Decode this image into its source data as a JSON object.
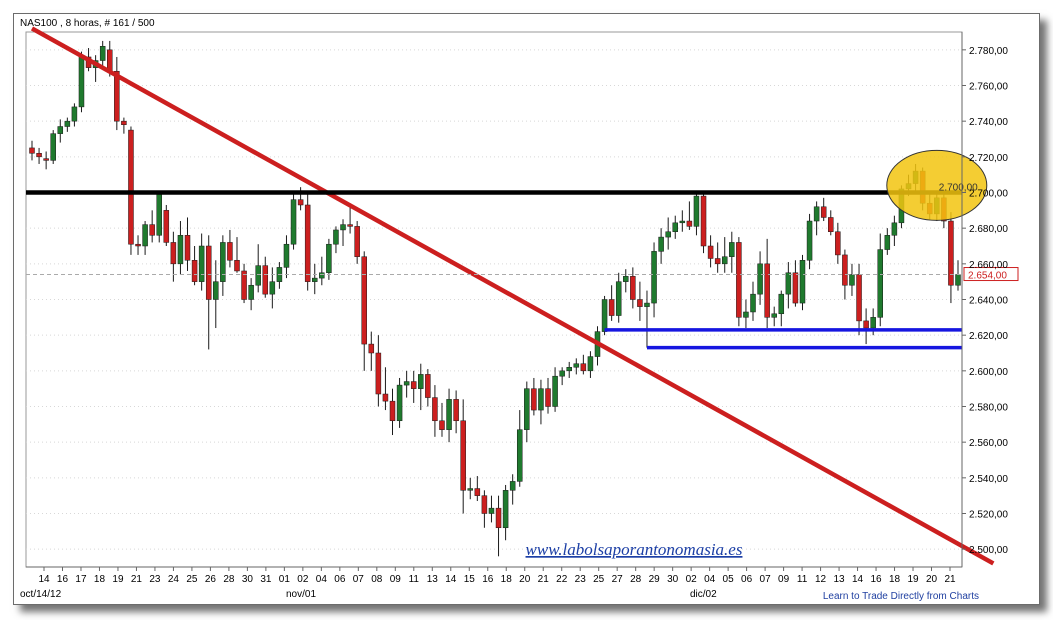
{
  "header": {
    "title": "NAS100 , 8 horas, # 161 / 500"
  },
  "footer": {
    "link": "Learn to Trade Directly from Charts"
  },
  "watermark": "www.labolsaporantonomasia.es",
  "price_label": "2.654,00",
  "circle_label": "2.700,00",
  "colors": {
    "up": "#1f7a2e",
    "down": "#cc1f1f",
    "trendline": "#cc1f1f",
    "resistance": "#000000",
    "support": "#1616e0",
    "highlight": "#f2c40f",
    "watermark": "#1c3fa6"
  },
  "chart_data": {
    "type": "candlestick",
    "title": "NAS100 , 8 horas, # 161 / 500",
    "xlabel": "",
    "ylabel": "",
    "ylim": [
      2490,
      2790
    ],
    "yticks": [
      "2.780,00",
      "2.760,00",
      "2.740,00",
      "2.720,00",
      "2.700,00",
      "2.680,00",
      "2.660,00",
      "2.640,00",
      "2.620,00",
      "2.600,00",
      "2.580,00",
      "2.560,00",
      "2.540,00",
      "2.520,00",
      "2.500,00"
    ],
    "ytick_values": [
      2780,
      2760,
      2740,
      2720,
      2700,
      2680,
      2660,
      2640,
      2620,
      2600,
      2580,
      2560,
      2540,
      2520,
      2500
    ],
    "xticks": [
      "14",
      "16",
      "17",
      "18",
      "19",
      "21",
      "23",
      "24",
      "25",
      "26",
      "28",
      "30",
      "31",
      "01",
      "02",
      "04",
      "06",
      "07",
      "08",
      "09",
      "11",
      "13",
      "14",
      "15",
      "16",
      "18",
      "20",
      "21",
      "22",
      "23",
      "25",
      "27",
      "28",
      "29",
      "30",
      "02",
      "04",
      "05",
      "06",
      "07",
      "09",
      "11",
      "12",
      "13",
      "14",
      "16",
      "18",
      "19",
      "20",
      "21"
    ],
    "period_labels": [
      "oct/14/12",
      "nov/01",
      "dic/02"
    ],
    "current_price": 2654,
    "grid": true,
    "candles_ohlc": [
      [
        2725,
        2729,
        2718,
        2722
      ],
      [
        2722,
        2725,
        2716,
        2720
      ],
      [
        2719,
        2723,
        2713,
        2718
      ],
      [
        2718,
        2735,
        2716,
        2733
      ],
      [
        2733,
        2741,
        2728,
        2737
      ],
      [
        2737,
        2742,
        2734,
        2740
      ],
      [
        2740,
        2750,
        2737,
        2748
      ],
      [
        2748,
        2779,
        2745,
        2776
      ],
      [
        2776,
        2781,
        2768,
        2770
      ],
      [
        2770,
        2777,
        2762,
        2774
      ],
      [
        2774,
        2785,
        2770,
        2782
      ],
      [
        2780,
        2785,
        2765,
        2768
      ],
      [
        2768,
        2776,
        2735,
        2740
      ],
      [
        2740,
        2742,
        2733,
        2738
      ],
      [
        2735,
        2737,
        2665,
        2671
      ],
      [
        2671,
        2676,
        2665,
        2670
      ],
      [
        2670,
        2684,
        2665,
        2682
      ],
      [
        2682,
        2690,
        2672,
        2676
      ],
      [
        2676,
        2701,
        2672,
        2699
      ],
      [
        2690,
        2693,
        2670,
        2672
      ],
      [
        2672,
        2678,
        2650,
        2660
      ],
      [
        2660,
        2684,
        2654,
        2676
      ],
      [
        2676,
        2686,
        2656,
        2662
      ],
      [
        2662,
        2670,
        2648,
        2650
      ],
      [
        2650,
        2677,
        2645,
        2670
      ],
      [
        2670,
        2676,
        2612,
        2640
      ],
      [
        2640,
        2662,
        2624,
        2650
      ],
      [
        2650,
        2676,
        2642,
        2672
      ],
      [
        2672,
        2679,
        2658,
        2662
      ],
      [
        2662,
        2675,
        2655,
        2656
      ],
      [
        2656,
        2660,
        2638,
        2640
      ],
      [
        2640,
        2652,
        2634,
        2648
      ],
      [
        2648,
        2671,
        2644,
        2659
      ],
      [
        2659,
        2664,
        2641,
        2643
      ],
      [
        2643,
        2658,
        2635,
        2650
      ],
      [
        2650,
        2661,
        2646,
        2658
      ],
      [
        2658,
        2676,
        2652,
        2671
      ],
      [
        2671,
        2699,
        2668,
        2696
      ],
      [
        2696,
        2703,
        2690,
        2693
      ],
      [
        2693,
        2699,
        2645,
        2650
      ],
      [
        2650,
        2660,
        2643,
        2652
      ],
      [
        2652,
        2664,
        2648,
        2655
      ],
      [
        2655,
        2674,
        2651,
        2671
      ],
      [
        2671,
        2681,
        2666,
        2679
      ],
      [
        2679,
        2685,
        2670,
        2682
      ],
      [
        2682,
        2694,
        2677,
        2681
      ],
      [
        2681,
        2684,
        2660,
        2664
      ],
      [
        2664,
        2667,
        2600,
        2615
      ],
      [
        2615,
        2622,
        2600,
        2610
      ],
      [
        2610,
        2620,
        2580,
        2587
      ],
      [
        2587,
        2602,
        2578,
        2583
      ],
      [
        2583,
        2590,
        2564,
        2572
      ],
      [
        2572,
        2596,
        2568,
        2592
      ],
      [
        2592,
        2600,
        2585,
        2594
      ],
      [
        2594,
        2600,
        2582,
        2590
      ],
      [
        2590,
        2604,
        2578,
        2598
      ],
      [
        2598,
        2601,
        2580,
        2585
      ],
      [
        2585,
        2592,
        2563,
        2572
      ],
      [
        2572,
        2582,
        2563,
        2567
      ],
      [
        2567,
        2590,
        2560,
        2584
      ],
      [
        2584,
        2589,
        2565,
        2572
      ],
      [
        2572,
        2584,
        2520,
        2533
      ],
      [
        2533,
        2540,
        2528,
        2534
      ],
      [
        2534,
        2541,
        2527,
        2530
      ],
      [
        2530,
        2533,
        2512,
        2520
      ],
      [
        2520,
        2530,
        2515,
        2523
      ],
      [
        2523,
        2530,
        2496,
        2512
      ],
      [
        2512,
        2536,
        2505,
        2533
      ],
      [
        2533,
        2542,
        2525,
        2538
      ],
      [
        2538,
        2578,
        2535,
        2567
      ],
      [
        2567,
        2594,
        2560,
        2590
      ],
      [
        2590,
        2596,
        2575,
        2578
      ],
      [
        2578,
        2595,
        2570,
        2590
      ],
      [
        2590,
        2596,
        2576,
        2580
      ],
      [
        2580,
        2602,
        2577,
        2597
      ],
      [
        2597,
        2602,
        2592,
        2600
      ],
      [
        2600,
        2605,
        2596,
        2602
      ],
      [
        2602,
        2607,
        2598,
        2604
      ],
      [
        2604,
        2609,
        2598,
        2600
      ],
      [
        2600,
        2611,
        2596,
        2608
      ],
      [
        2608,
        2625,
        2603,
        2622
      ],
      [
        2622,
        2642,
        2620,
        2640
      ],
      [
        2640,
        2648,
        2628,
        2631
      ],
      [
        2631,
        2655,
        2627,
        2650
      ],
      [
        2650,
        2657,
        2644,
        2653
      ],
      [
        2653,
        2658,
        2635,
        2640
      ],
      [
        2640,
        2650,
        2628,
        2636
      ],
      [
        2636,
        2645,
        2613,
        2638
      ],
      [
        2638,
        2672,
        2630,
        2667
      ],
      [
        2667,
        2680,
        2660,
        2675
      ],
      [
        2675,
        2686,
        2668,
        2678
      ],
      [
        2678,
        2687,
        2674,
        2683
      ],
      [
        2683,
        2690,
        2678,
        2684
      ],
      [
        2684,
        2695,
        2679,
        2681
      ],
      [
        2681,
        2700,
        2676,
        2698
      ],
      [
        2698,
        2700,
        2666,
        2670
      ],
      [
        2670,
        2676,
        2658,
        2663
      ],
      [
        2663,
        2672,
        2655,
        2660
      ],
      [
        2660,
        2675,
        2655,
        2664
      ],
      [
        2664,
        2678,
        2655,
        2672
      ],
      [
        2672,
        2675,
        2625,
        2630
      ],
      [
        2630,
        2640,
        2624,
        2633
      ],
      [
        2633,
        2650,
        2628,
        2643
      ],
      [
        2643,
        2667,
        2637,
        2660
      ],
      [
        2660,
        2674,
        2624,
        2630
      ],
      [
        2630,
        2636,
        2625,
        2632
      ],
      [
        2632,
        2645,
        2625,
        2643
      ],
      [
        2643,
        2661,
        2635,
        2655
      ],
      [
        2655,
        2662,
        2636,
        2638
      ],
      [
        2638,
        2665,
        2634,
        2662
      ],
      [
        2662,
        2688,
        2657,
        2684
      ],
      [
        2684,
        2695,
        2676,
        2692
      ],
      [
        2692,
        2697,
        2684,
        2686
      ],
      [
        2686,
        2690,
        2676,
        2678
      ],
      [
        2678,
        2683,
        2660,
        2665
      ],
      [
        2665,
        2668,
        2640,
        2648
      ],
      [
        2648,
        2660,
        2642,
        2654
      ],
      [
        2654,
        2660,
        2620,
        2628
      ],
      [
        2628,
        2635,
        2615,
        2624
      ],
      [
        2624,
        2635,
        2620,
        2630
      ],
      [
        2630,
        2677,
        2625,
        2668
      ],
      [
        2668,
        2680,
        2665,
        2676
      ],
      [
        2676,
        2687,
        2670,
        2683
      ],
      [
        2683,
        2704,
        2680,
        2702
      ],
      [
        2702,
        2710,
        2698,
        2705
      ],
      [
        2705,
        2716,
        2700,
        2712
      ],
      [
        2712,
        2714,
        2690,
        2694
      ],
      [
        2694,
        2700,
        2685,
        2688
      ],
      [
        2688,
        2701,
        2684,
        2697
      ],
      [
        2697,
        2700,
        2680,
        2684
      ],
      [
        2684,
        2689,
        2638,
        2648
      ],
      [
        2648,
        2662,
        2645,
        2654
      ]
    ],
    "annotations": {
      "trendline": [
        [
          0,
          2792
        ],
        [
          136,
          2492
        ]
      ],
      "resistance_level": 2700,
      "support_levels": [
        {
          "value": 2623,
          "from": 81,
          "to": 136
        },
        {
          "value": 2613,
          "from": 87,
          "to": 136
        }
      ],
      "highlight_circle_center": [
        128,
        2704
      ]
    }
  }
}
